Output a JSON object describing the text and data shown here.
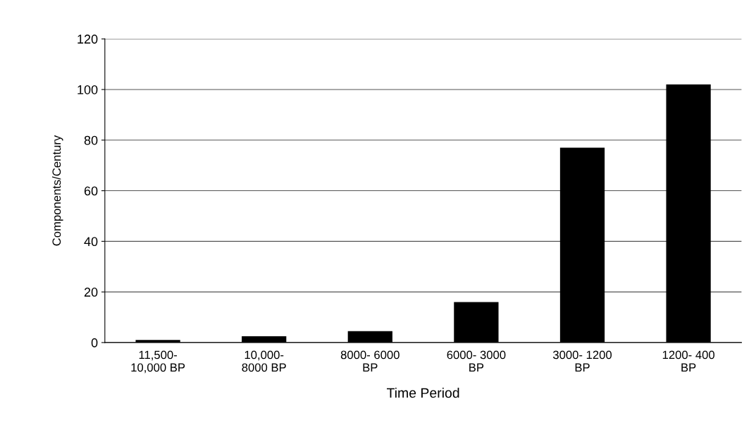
{
  "chart_data": {
    "type": "bar",
    "xlabel": "Time Period",
    "ylabel": "Components/Century",
    "categories": [
      "11,500-\n10,000 BP",
      "10,000-\n8000 BP",
      "8000- 6000\nBP",
      "6000- 3000\nBP",
      "3000- 1200\nBP",
      "1200- 400\nBP"
    ],
    "values": [
      1,
      2.5,
      4.5,
      16,
      77,
      102
    ],
    "color": "#000000",
    "ylim": [
      0,
      120
    ],
    "yticks": [
      0,
      20,
      40,
      60,
      80,
      100,
      120
    ],
    "grid": "y"
  }
}
